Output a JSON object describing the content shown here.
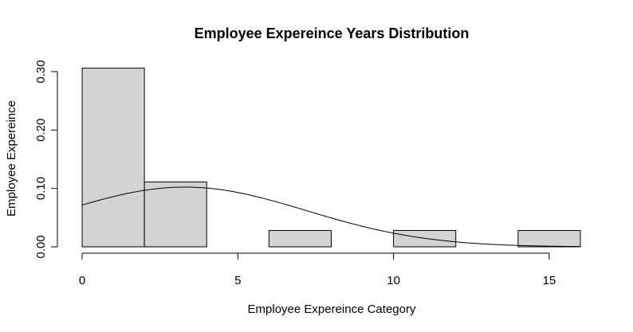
{
  "chart_data": {
    "type": "bar",
    "title": "Employee Expereince Years Distribution",
    "xlabel": "Employee Expereince Category",
    "ylabel": "Employee Expereince",
    "x_ticks": [
      0,
      5,
      10,
      15
    ],
    "x_tick_labels": [
      "0",
      "5",
      "10",
      "15"
    ],
    "y_ticks": [
      0,
      0.1,
      0.2,
      0.3
    ],
    "y_tick_labels": [
      "0.00",
      "0.10",
      "0.20",
      "0.30"
    ],
    "xlim": [
      0,
      16
    ],
    "ylim": [
      0,
      0.3
    ],
    "bins": [
      {
        "start": 0,
        "end": 2,
        "density": 0.306
      },
      {
        "start": 2,
        "end": 4,
        "density": 0.111
      },
      {
        "start": 4,
        "end": 6,
        "density": 0
      },
      {
        "start": 6,
        "end": 8,
        "density": 0.028
      },
      {
        "start": 8,
        "end": 10,
        "density": 0
      },
      {
        "start": 10,
        "end": 12,
        "density": 0.028
      },
      {
        "start": 12,
        "end": 14,
        "density": 0
      },
      {
        "start": 14,
        "end": 16,
        "density": 0.028
      }
    ],
    "density_curve": {
      "type": "normal",
      "mean": 3.3,
      "sd": 3.9
    },
    "bar_fill": "#d3d3d3",
    "bar_stroke": "#000000",
    "grid": false
  }
}
